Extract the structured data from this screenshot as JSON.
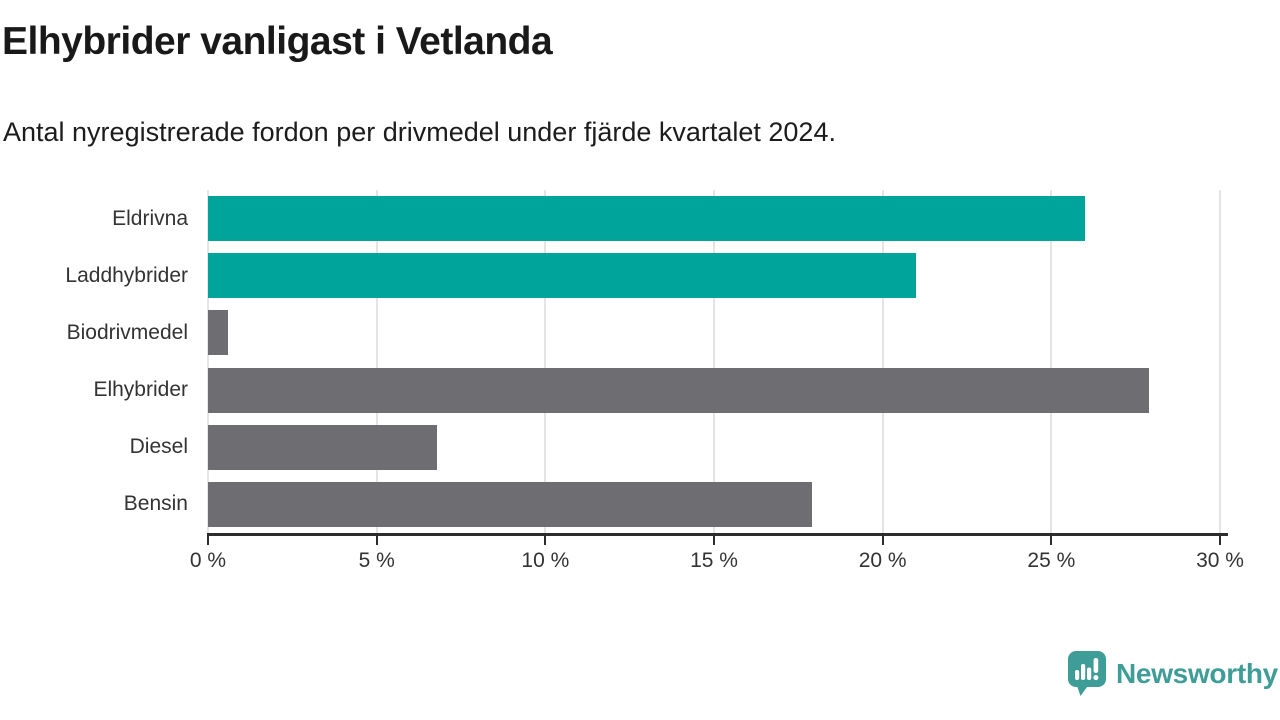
{
  "header": {
    "title": "Elhybrider vanligast i Vetlanda",
    "subtitle": "Antal nyregistrerade fordon per drivmedel under fjärde kvartalet 2024."
  },
  "chart_data": {
    "type": "bar",
    "orientation": "horizontal",
    "title": "Elhybrider vanligast i Vetlanda",
    "xlabel": "",
    "ylabel": "",
    "categories": [
      "Eldrivna",
      "Laddhybrider",
      "Biodrivmedel",
      "Elhybrider",
      "Diesel",
      "Bensin"
    ],
    "values": [
      26.0,
      21.0,
      0.6,
      27.9,
      6.8,
      17.9
    ],
    "unit": "%",
    "bar_colors": [
      "#00a49b",
      "#00a49b",
      "#6d6d72",
      "#6d6d72",
      "#6d6d72",
      "#6d6d72"
    ],
    "highlight_color": "#00a49b",
    "default_color": "#6d6d72",
    "xlim": [
      0,
      30
    ],
    "x_tick_values": [
      0,
      5,
      10,
      15,
      20,
      25,
      30
    ],
    "x_tick_labels": [
      "0 %",
      "5 %",
      "10 %",
      "15 %",
      "20 %",
      "25 %",
      "30 %"
    ],
    "grid": "vertical",
    "gridline_color": "#e4e4e4",
    "axis_color": "#2d2d2d",
    "legend": "none",
    "data_labels": "none"
  },
  "footer": {
    "brand": "Newsworthy",
    "brand_color": "#3f9d97",
    "logo_icon": "speech-bubble-bar-chart-icon"
  }
}
